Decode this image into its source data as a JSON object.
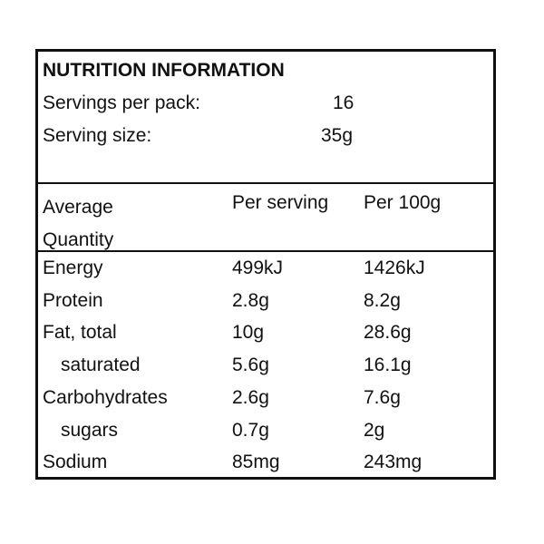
{
  "header": {
    "title": "NUTRITION INFORMATION",
    "servings_label": "Servings per pack:",
    "servings_value": 16,
    "size_label": "Serving size:",
    "size_value": "35g"
  },
  "table": {
    "columns": [
      "Average Quantity",
      "Per serving",
      "Per 100g"
    ],
    "rows": [
      [
        "Energy",
        "499kJ",
        "1426kJ"
      ],
      [
        "Protein",
        "2.8g",
        "8.2g"
      ],
      [
        "Fat, total",
        "10g",
        "28.6g"
      ],
      [
        "saturated",
        "5.6g",
        "16.1g"
      ],
      [
        "Carbohydrates",
        "2.6g",
        "7.6g"
      ],
      [
        "sugars",
        "0.7g",
        "2g"
      ],
      [
        "Sodium",
        "85mg",
        "243mg"
      ]
    ]
  }
}
